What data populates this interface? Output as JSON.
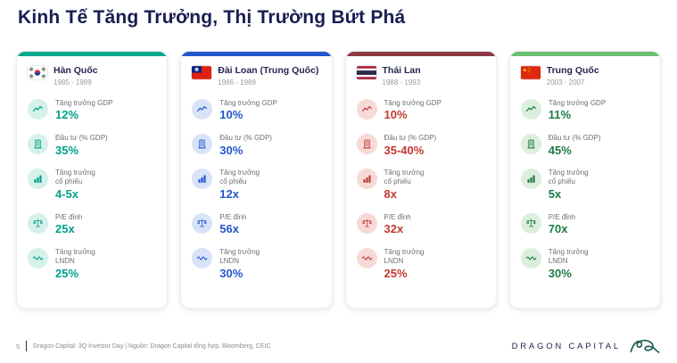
{
  "slide": {
    "title": "Kinh Tế Tăng Trưởng, Thị Trường Bứt Phá",
    "page_number": "5",
    "source_text": "Dragon Capital: 3Q Investor Day | Nguồn: Dragon Capital tổng hợp, Bloomberg, CEIC",
    "brand_name": "DRAGON CAPITAL",
    "logo_icon": "dragon-logo",
    "title_color": "#191D52"
  },
  "cards": [
    {
      "country": "Hàn Quốc",
      "years": "1985 - 1989",
      "flag": "south-korea",
      "accent": "#00A88F",
      "value_color": "#00A08A",
      "tint": "#D5F1EA",
      "metrics": [
        {
          "icon": "trend-line",
          "label": "Tăng trưởng GDP",
          "value": "12%"
        },
        {
          "icon": "building",
          "label": "Đầu tư (% GDP)",
          "value": "35%"
        },
        {
          "icon": "bar-chart",
          "label": "Tăng trưởng\ncổ phiếu",
          "value": "4-5x"
        },
        {
          "icon": "balance-scale",
          "label": "P/E đỉnh",
          "value": "25x"
        },
        {
          "icon": "wave-line",
          "label": "Tăng trưởng\nLNDN",
          "value": "25%"
        }
      ]
    },
    {
      "country": "Đài Loan (Trung Quốc)",
      "years": "1986 - 1989",
      "flag": "taiwan",
      "accent": "#2356CF",
      "value_color": "#2356CF",
      "tint": "#D8E3F8",
      "metrics": [
        {
          "icon": "trend-line",
          "label": "Tăng trưởng GDP",
          "value": "10%"
        },
        {
          "icon": "building",
          "label": "Đầu tư (% GDP)",
          "value": "30%"
        },
        {
          "icon": "bar-chart",
          "label": "Tăng trưởng\ncổ phiếu",
          "value": "12x"
        },
        {
          "icon": "balance-scale",
          "label": "P/E đỉnh",
          "value": "56x"
        },
        {
          "icon": "wave-line",
          "label": "Tăng trưởng\nLNDN",
          "value": "30%"
        }
      ]
    },
    {
      "country": "Thái Lan",
      "years": "1988 - 1993",
      "flag": "thailand",
      "accent": "#8E3A44",
      "value_color": "#C13A32",
      "tint": "#F7DAD7",
      "metrics": [
        {
          "icon": "trend-line",
          "label": "Tăng trưởng GDP",
          "value": "10%"
        },
        {
          "icon": "building",
          "label": "Đầu tư (% GDP)",
          "value": "35-40%"
        },
        {
          "icon": "bar-chart",
          "label": "Tăng trưởng\ncổ phiếu",
          "value": "8x"
        },
        {
          "icon": "balance-scale",
          "label": "P/E đỉnh",
          "value": "32x"
        },
        {
          "icon": "wave-line",
          "label": "Tăng trưởng\nLNDN",
          "value": "25%"
        }
      ]
    },
    {
      "country": "Trung Quốc",
      "years": "2003 - 2007",
      "flag": "china",
      "accent": "#6CBE71",
      "value_color": "#1E7B46",
      "tint": "#DCEEDD",
      "metrics": [
        {
          "icon": "trend-line",
          "label": "Tăng trưởng GDP",
          "value": "11%"
        },
        {
          "icon": "building",
          "label": "Đầu tư (% GDP)",
          "value": "45%"
        },
        {
          "icon": "bar-chart",
          "label": "Tăng trưởng\ncổ phiếu",
          "value": "5x"
        },
        {
          "icon": "balance-scale",
          "label": "P/E đỉnh",
          "value": "70x"
        },
        {
          "icon": "wave-line",
          "label": "Tăng trưởng\nLNDN",
          "value": "30%"
        }
      ]
    }
  ]
}
